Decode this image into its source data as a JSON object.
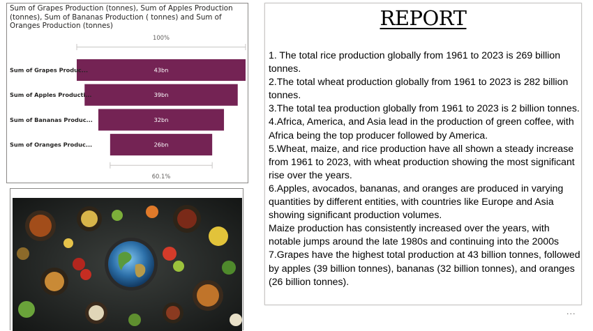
{
  "funnel": {
    "title": "Sum of Grapes Production (tonnes), Sum of Apples Production (tonnes), Sum of Bananas Production ( tonnes) and Sum of Oranges Production (tonnes)",
    "top_percent": "100%",
    "bottom_percent": "60.1%",
    "bar_color": "#742354",
    "chart_data": {
      "type": "bar",
      "subtype": "funnel",
      "categories": [
        "Sum of Grapes Produc...",
        "Sum of Apples Producti...",
        "Sum of Bananas Produc...",
        "Sum of Oranges Produc..."
      ],
      "values": [
        43,
        39,
        32,
        26
      ],
      "value_labels": [
        "43bn",
        "39bn",
        "32bn",
        "26bn"
      ],
      "unit": "bn",
      "percent_of_first_top": "100%",
      "percent_of_first_bottom": "60.1%"
    }
  },
  "image": {
    "description_icon": "food-world-image"
  },
  "report": {
    "title": "REPORT",
    "paragraphs": [
      "1. The total rice production globally from 1961 to 2023 is 269 billion tonnes.",
      "2.The total wheat production globally from 1961 to 2023 is 282 billion tonnes.",
      "3.The total tea production globally from 1961 to 2023 is 2 billion tonnes.",
      "4.Africa, America, and Asia lead in the production of green coffee, with Africa being the top producer followed by America.",
      "5.Wheat, maize, and rice production have all shown a steady increase from 1961 to 2023, with wheat production showing the most significant rise over the years.",
      "6.Apples, avocados, bananas, and oranges are produced in varying quantities by different entities, with countries like Europe and Asia showing significant production volumes.",
      "Maize production has consistently increased over the years, with notable jumps around the late 1980s and continuing into the 2000s",
      "7.Grapes have the highest total production at 43 billion tonnes, followed by apples (39 billion tonnes), bananas (32 billion tonnes), and oranges (26 billion tonnes)."
    ]
  },
  "more_options": "..."
}
